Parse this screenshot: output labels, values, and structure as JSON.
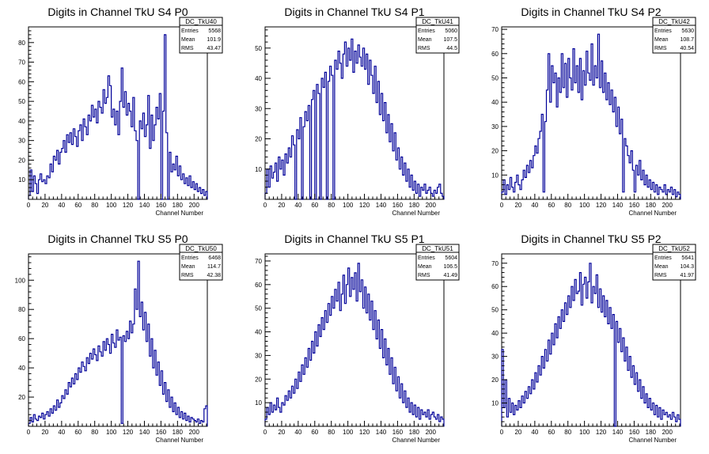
{
  "chart_data": [
    {
      "type": "histogram",
      "name": "DC_TkU40",
      "title": "Digits in Channel TkU S4 P0",
      "xlabel": "Channel Number",
      "xlim": [
        0,
        216
      ],
      "ylim": [
        0,
        88
      ],
      "xticks": [
        0,
        20,
        40,
        60,
        80,
        100,
        120,
        140,
        160,
        180,
        200
      ],
      "yticks": [
        10,
        20,
        30,
        40,
        50,
        60,
        70,
        80
      ],
      "stats": [
        {
          "label": "Entries",
          "value": "5568"
        },
        {
          "label": "Mean",
          "value": "101.9"
        },
        {
          "label": "RMS",
          "value": "43.47"
        }
      ],
      "bin_width": 2,
      "values": [
        2,
        15,
        4,
        12,
        8,
        3,
        10,
        13,
        9,
        10,
        8,
        12,
        11,
        18,
        14,
        22,
        20,
        25,
        18,
        24,
        26,
        30,
        24,
        33,
        29,
        34,
        28,
        36,
        32,
        27,
        35,
        38,
        30,
        41,
        37,
        33,
        43,
        40,
        48,
        42,
        46,
        39,
        50,
        47,
        44,
        56,
        49,
        52,
        63,
        58,
        42,
        46,
        38,
        45,
        33,
        50,
        67,
        47,
        55,
        43,
        49,
        45,
        37,
        52,
        35,
        30,
        0,
        40,
        36,
        44,
        32,
        38,
        53,
        26,
        43,
        30,
        38,
        47,
        41,
        54,
        0,
        45,
        84,
        34,
        0,
        24,
        14,
        18,
        15,
        22,
        12,
        17,
        10,
        13,
        8,
        11,
        7,
        12,
        6,
        9,
        5,
        8,
        4,
        6,
        3,
        5,
        2,
        4
      ]
    },
    {
      "type": "histogram",
      "name": "DC_TkU41",
      "title": "Digits in Channel TkU S4 P1",
      "xlabel": "Channel Number",
      "xlim": [
        0,
        216
      ],
      "ylim": [
        0,
        57
      ],
      "xticks": [
        0,
        20,
        40,
        60,
        80,
        100,
        120,
        140,
        160,
        180,
        200
      ],
      "yticks": [
        10,
        20,
        30,
        40,
        50
      ],
      "stats": [
        {
          "label": "Entries",
          "value": "5060"
        },
        {
          "label": "Mean",
          "value": "107.5"
        },
        {
          "label": "RMS",
          "value": "44.5"
        }
      ],
      "bin_width": 2,
      "values": [
        2,
        10,
        4,
        11,
        7,
        9,
        12,
        6,
        14,
        10,
        13,
        8,
        15,
        12,
        17,
        14,
        21,
        18,
        0,
        23,
        20,
        27,
        0,
        24,
        29,
        26,
        31,
        0,
        33,
        36,
        0,
        38,
        35,
        0,
        40,
        37,
        42,
        0,
        39,
        44,
        41,
        0,
        46,
        43,
        49,
        45,
        40,
        48,
        52,
        44,
        50,
        46,
        53,
        42,
        49,
        45,
        51,
        47,
        44,
        50,
        43,
        48,
        38,
        46,
        41,
        35,
        44,
        32,
        39,
        28,
        35,
        26,
        32,
        22,
        28,
        19,
        25,
        16,
        22,
        13,
        17,
        10,
        14,
        8,
        12,
        6,
        10,
        4,
        8,
        3,
        6,
        2,
        5,
        1,
        4,
        3,
        5,
        2,
        3,
        4,
        2,
        1,
        3,
        2,
        4,
        5,
        2,
        1
      ]
    },
    {
      "type": "histogram",
      "name": "DC_TkU42",
      "title": "Digits in Channel TkU S4 P2",
      "xlabel": "Channel Number",
      "xlim": [
        0,
        216
      ],
      "ylim": [
        0,
        71
      ],
      "xticks": [
        0,
        20,
        40,
        60,
        80,
        100,
        120,
        140,
        160,
        180,
        200
      ],
      "yticks": [
        10,
        20,
        30,
        40,
        50,
        60,
        70
      ],
      "stats": [
        {
          "label": "Entries",
          "value": "5630"
        },
        {
          "label": "Mean",
          "value": "108.7"
        },
        {
          "label": "RMS",
          "value": "40.54"
        }
      ],
      "bin_width": 2,
      "values": [
        3,
        8,
        2,
        6,
        4,
        9,
        5,
        3,
        7,
        10,
        6,
        4,
        8,
        12,
        9,
        14,
        11,
        16,
        13,
        18,
        22,
        19,
        25,
        28,
        35,
        3,
        32,
        45,
        60,
        40,
        55,
        48,
        52,
        38,
        50,
        44,
        60,
        46,
        56,
        42,
        58,
        50,
        45,
        62,
        48,
        55,
        44,
        58,
        41,
        53,
        47,
        61,
        52,
        49,
        64,
        47,
        55,
        50,
        68,
        46,
        57,
        44,
        52,
        41,
        48,
        39,
        45,
        36,
        42,
        30,
        38,
        27,
        33,
        3,
        25,
        22,
        18,
        15,
        20,
        12,
        3,
        14,
        10,
        16,
        8,
        12,
        6,
        10,
        5,
        8,
        4,
        7,
        3,
        6,
        2,
        5,
        4,
        3,
        6,
        2,
        4,
        3,
        5,
        2,
        4,
        1,
        3,
        2
      ]
    },
    {
      "type": "histogram",
      "name": "DC_TkU50",
      "title": "Digits in Channel TkU S5 P0",
      "xlabel": "Channel Number",
      "xlim": [
        0,
        216
      ],
      "ylim": [
        0,
        118
      ],
      "xticks": [
        0,
        20,
        40,
        60,
        80,
        100,
        120,
        140,
        160,
        180,
        200
      ],
      "yticks": [
        20,
        40,
        60,
        80,
        100
      ],
      "stats": [
        {
          "label": "Entries",
          "value": "6468"
        },
        {
          "label": "Mean",
          "value": "114.7"
        },
        {
          "label": "RMS",
          "value": "42.38"
        }
      ],
      "bin_width": 2,
      "values": [
        2,
        6,
        3,
        8,
        5,
        4,
        7,
        6,
        9,
        5,
        8,
        10,
        7,
        12,
        9,
        14,
        11,
        18,
        13,
        16,
        21,
        19,
        25,
        22,
        30,
        27,
        33,
        29,
        36,
        32,
        40,
        37,
        44,
        41,
        38,
        47,
        43,
        50,
        46,
        53,
        49,
        45,
        55,
        51,
        48,
        58,
        52,
        60,
        56,
        50,
        63,
        57,
        54,
        66,
        59,
        61,
        2,
        62,
        58,
        65,
        60,
        72,
        64,
        70,
        94,
        80,
        113,
        75,
        85,
        66,
        78,
        58,
        70,
        48,
        60,
        40,
        52,
        35,
        44,
        28,
        38,
        22,
        30,
        17,
        25,
        13,
        20,
        10,
        16,
        8,
        13,
        6,
        10,
        5,
        9,
        4,
        7,
        3,
        6,
        5,
        4,
        3,
        5,
        2,
        4,
        3,
        12,
        14
      ]
    },
    {
      "type": "histogram",
      "name": "DC_TkU51",
      "title": "Digits in Channel TkU S5 P1",
      "xlabel": "Channel Number",
      "xlim": [
        0,
        216
      ],
      "ylim": [
        0,
        73
      ],
      "xticks": [
        0,
        20,
        40,
        60,
        80,
        100,
        120,
        140,
        160,
        180,
        200
      ],
      "yticks": [
        10,
        20,
        30,
        40,
        50,
        60,
        70
      ],
      "stats": [
        {
          "label": "Entries",
          "value": "5604"
        },
        {
          "label": "Mean",
          "value": "106.5"
        },
        {
          "label": "RMS",
          "value": "41.49"
        }
      ],
      "bin_width": 2,
      "values": [
        3,
        8,
        5,
        10,
        6,
        9,
        7,
        12,
        8,
        6,
        10,
        9,
        13,
        11,
        15,
        12,
        17,
        14,
        20,
        16,
        23,
        19,
        26,
        22,
        29,
        25,
        33,
        28,
        36,
        31,
        40,
        34,
        43,
        38,
        46,
        41,
        49,
        44,
        52,
        47,
        55,
        50,
        58,
        53,
        61,
        49,
        56,
        64,
        52,
        60,
        67,
        55,
        63,
        58,
        65,
        53,
        69,
        57,
        62,
        50,
        59,
        48,
        56,
        45,
        53,
        41,
        49,
        37,
        45,
        33,
        41,
        29,
        37,
        26,
        33,
        22,
        29,
        18,
        25,
        15,
        21,
        12,
        18,
        10,
        15,
        8,
        12,
        6,
        10,
        5,
        9,
        4,
        8,
        3,
        7,
        5,
        6,
        4,
        7,
        3,
        5,
        6,
        4,
        3,
        5,
        2,
        4,
        3
      ]
    },
    {
      "type": "histogram",
      "name": "DC_TkU52",
      "title": "Digits in Channel TkU S5 P2",
      "xlabel": "Channel Number",
      "xlim": [
        0,
        216
      ],
      "ylim": [
        0,
        74
      ],
      "xticks": [
        0,
        20,
        40,
        60,
        80,
        100,
        120,
        140,
        160,
        180,
        200
      ],
      "yticks": [
        10,
        20,
        30,
        40,
        50,
        60,
        70
      ],
      "stats": [
        {
          "label": "Entries",
          "value": "5641"
        },
        {
          "label": "Mean",
          "value": "104.3"
        },
        {
          "label": "RMS",
          "value": "41.97"
        }
      ],
      "bin_width": 2,
      "values": [
        33,
        8,
        20,
        4,
        12,
        6,
        10,
        5,
        9,
        7,
        11,
        8,
        13,
        10,
        15,
        12,
        17,
        14,
        20,
        16,
        23,
        19,
        26,
        22,
        30,
        25,
        33,
        28,
        37,
        31,
        40,
        35,
        44,
        38,
        47,
        42,
        50,
        45,
        53,
        48,
        56,
        51,
        60,
        54,
        63,
        57,
        58,
        66,
        52,
        61,
        64,
        55,
        62,
        70,
        53,
        60,
        57,
        65,
        51,
        59,
        49,
        56,
        47,
        54,
        44,
        51,
        42,
        48,
        0,
        45,
        36,
        42,
        32,
        38,
        28,
        34,
        24,
        30,
        21,
        26,
        18,
        23,
        15,
        20,
        12,
        17,
        10,
        14,
        8,
        12,
        7,
        10,
        5,
        9,
        4,
        8,
        3,
        7,
        5,
        6,
        4,
        5,
        3,
        6,
        4,
        2,
        5,
        3
      ]
    }
  ]
}
